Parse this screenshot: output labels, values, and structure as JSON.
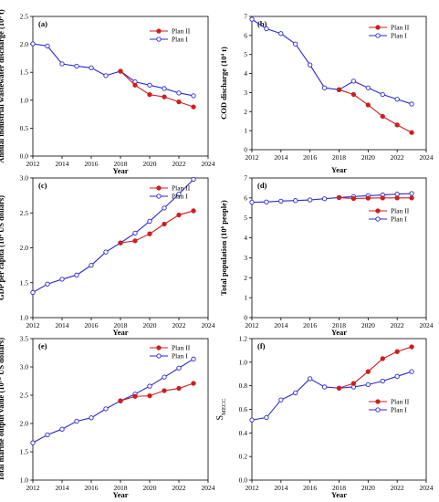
{
  "chart_data": [
    {
      "type": "line",
      "panel_label": "(a)",
      "xlabel": "Year",
      "ylabel": "Annual industrial wastewater discharge (10⁸ t)",
      "xlim": [
        2012,
        2024
      ],
      "ylim": [
        0.0,
        2.5
      ],
      "xticks": [
        "2012",
        "2014",
        "2016",
        "2018",
        "2020",
        "2022",
        "2024"
      ],
      "yticks": [
        "0.0",
        "0.5",
        "1.0",
        "1.5",
        "2.0",
        "2.5"
      ],
      "legend_position": "top-right",
      "series": [
        {
          "name": "Plan II",
          "color": "#cc1f1f",
          "marker": "filled",
          "x": [
            2018,
            2019,
            2020,
            2021,
            2022,
            2023
          ],
          "y": [
            1.52,
            1.27,
            1.1,
            1.06,
            0.97,
            0.88
          ]
        },
        {
          "name": "Plan I",
          "color": "#2a2ad0",
          "marker": "open",
          "x": [
            2012,
            2013,
            2014,
            2015,
            2016,
            2017,
            2018,
            2019,
            2020,
            2021,
            2022,
            2023
          ],
          "y": [
            2.01,
            1.97,
            1.65,
            1.61,
            1.58,
            1.44,
            1.52,
            1.33,
            1.27,
            1.21,
            1.13,
            1.08
          ]
        }
      ]
    },
    {
      "type": "line",
      "panel_label": "(b)",
      "xlabel": "Year",
      "ylabel": "COD discharge (10⁴ t)",
      "xlim": [
        2012,
        2024
      ],
      "ylim": [
        0,
        7
      ],
      "xticks": [
        "2012",
        "2014",
        "2016",
        "2018",
        "2020",
        "2022",
        "2024"
      ],
      "yticks": [
        "0",
        "1",
        "2",
        "3",
        "4",
        "5",
        "6",
        "7"
      ],
      "legend_position": "top-right",
      "series": [
        {
          "name": "Plan II",
          "color": "#cc1f1f",
          "marker": "filled",
          "x": [
            2018,
            2019,
            2020,
            2021,
            2022,
            2023
          ],
          "y": [
            3.15,
            2.9,
            2.35,
            1.75,
            1.3,
            0.9
          ]
        },
        {
          "name": "Plan I",
          "color": "#2a2ad0",
          "marker": "open",
          "x": [
            2012,
            2013,
            2014,
            2015,
            2016,
            2017,
            2018,
            2019,
            2020,
            2021,
            2022,
            2023
          ],
          "y": [
            6.85,
            6.35,
            6.1,
            5.55,
            4.45,
            3.25,
            3.15,
            3.6,
            3.25,
            2.9,
            2.65,
            2.4
          ]
        }
      ]
    },
    {
      "type": "line",
      "panel_label": "(c)",
      "xlabel": "Year",
      "ylabel": "GDP per capita (10⁴ US dollars)",
      "xlim": [
        2012,
        2024
      ],
      "ylim": [
        1.0,
        3.0
      ],
      "xticks": [
        "2012",
        "2014",
        "2016",
        "2018",
        "2020",
        "2022",
        "2024"
      ],
      "yticks": [
        "1.0",
        "1.5",
        "2.0",
        "2.5",
        "3.0"
      ],
      "legend_position": "top-right",
      "series": [
        {
          "name": "Plan II",
          "color": "#cc1f1f",
          "marker": "filled",
          "x": [
            2018,
            2019,
            2020,
            2021,
            2022,
            2023
          ],
          "y": [
            2.07,
            2.1,
            2.2,
            2.34,
            2.47,
            2.53
          ]
        },
        {
          "name": "Plan I",
          "color": "#2a2ad0",
          "marker": "open",
          "x": [
            2012,
            2013,
            2014,
            2015,
            2016,
            2017,
            2018,
            2019,
            2020,
            2021,
            2022,
            2023
          ],
          "y": [
            1.36,
            1.48,
            1.55,
            1.61,
            1.75,
            1.94,
            2.07,
            2.21,
            2.38,
            2.57,
            2.77,
            2.98
          ]
        }
      ]
    },
    {
      "type": "line",
      "panel_label": "(d)",
      "xlabel": "Year",
      "ylabel": "Total population (10⁶ people)",
      "xlim": [
        2012,
        2024
      ],
      "ylim": [
        0,
        7
      ],
      "xticks": [
        "2012",
        "2014",
        "2016",
        "2018",
        "2020",
        "2022",
        "2024"
      ],
      "yticks": [
        "0",
        "1",
        "2",
        "3",
        "4",
        "5",
        "6",
        "7"
      ],
      "legend_position": "right",
      "series": [
        {
          "name": "Plan II",
          "color": "#cc1f1f",
          "marker": "filled",
          "x": [
            2018,
            2019,
            2020,
            2021,
            2022,
            2023
          ],
          "y": [
            6.02,
            5.97,
            5.99,
            6.0,
            6.0,
            6.0
          ]
        },
        {
          "name": "Plan I",
          "color": "#2a2ad0",
          "marker": "open",
          "x": [
            2012,
            2013,
            2014,
            2015,
            2016,
            2017,
            2018,
            2019,
            2020,
            2021,
            2022,
            2023
          ],
          "y": [
            5.78,
            5.8,
            5.84,
            5.87,
            5.9,
            5.96,
            6.02,
            6.07,
            6.11,
            6.15,
            6.19,
            6.22
          ]
        }
      ]
    },
    {
      "type": "line",
      "panel_label": "(e)",
      "xlabel": "Year",
      "ylabel": "Total marine output value (10¹⁰ US dollars)",
      "xlim": [
        2012,
        2024
      ],
      "ylim": [
        1.0,
        3.5
      ],
      "xticks": [
        "2012",
        "2014",
        "2016",
        "2018",
        "2020",
        "2022",
        "2024"
      ],
      "yticks": [
        "1.0",
        "1.5",
        "2.0",
        "2.5",
        "3.0",
        "3.5"
      ],
      "legend_position": "top-right",
      "series": [
        {
          "name": "Plan II",
          "color": "#cc1f1f",
          "marker": "filled",
          "x": [
            2018,
            2019,
            2020,
            2021,
            2022,
            2023
          ],
          "y": [
            2.4,
            2.48,
            2.49,
            2.58,
            2.62,
            2.71
          ]
        },
        {
          "name": "Plan I",
          "color": "#2a2ad0",
          "marker": "open",
          "x": [
            2012,
            2013,
            2014,
            2015,
            2016,
            2017,
            2018,
            2019,
            2020,
            2021,
            2022,
            2023
          ],
          "y": [
            1.66,
            1.8,
            1.9,
            2.04,
            2.1,
            2.26,
            2.4,
            2.52,
            2.66,
            2.82,
            2.98,
            3.14
          ]
        }
      ]
    },
    {
      "type": "line",
      "panel_label": "(f)",
      "xlabel": "Year",
      "ylabel": "S_MECC",
      "ylabel_main": "S",
      "ylabel_sub": "MECC",
      "xlim": [
        2012,
        2024
      ],
      "ylim": [
        0.0,
        1.2
      ],
      "xticks": [
        "2012",
        "2014",
        "2016",
        "2018",
        "2020",
        "2022",
        "2024"
      ],
      "yticks": [
        "0.0",
        "0.2",
        "0.4",
        "0.6",
        "0.8",
        "1.0",
        "1.2"
      ],
      "legend_position": "right",
      "series": [
        {
          "name": "Plan II",
          "color": "#cc1f1f",
          "marker": "filled",
          "x": [
            2018,
            2019,
            2020,
            2021,
            2022,
            2023
          ],
          "y": [
            0.78,
            0.82,
            0.92,
            1.03,
            1.09,
            1.13
          ]
        },
        {
          "name": "Plan I",
          "color": "#2a2ad0",
          "marker": "open",
          "x": [
            2012,
            2013,
            2014,
            2015,
            2016,
            2017,
            2018,
            2019,
            2020,
            2021,
            2022,
            2023
          ],
          "y": [
            0.51,
            0.53,
            0.68,
            0.74,
            0.86,
            0.79,
            0.78,
            0.79,
            0.81,
            0.84,
            0.88,
            0.92
          ]
        }
      ]
    }
  ]
}
